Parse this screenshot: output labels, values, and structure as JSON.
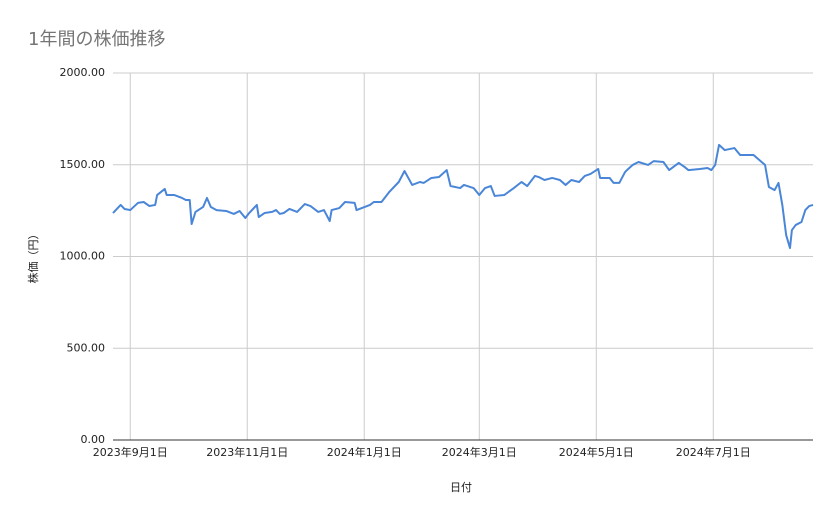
{
  "chart_data": {
    "type": "line",
    "title": "1年間の株価推移",
    "x_label": "日付",
    "y_label": "株価（円）",
    "color": "#4a86d8",
    "grid": true,
    "xlim": [
      "2023-08-23",
      "2024-08-22"
    ],
    "xticks": [
      {
        "value": "2023-09-01",
        "label": "2023年9月1日"
      },
      {
        "value": "2023-11-01",
        "label": "2023年11月1日"
      },
      {
        "value": "2024-01-01",
        "label": "2024年1月1日"
      },
      {
        "value": "2024-03-01",
        "label": "2024年3月1日"
      },
      {
        "value": "2024-05-01",
        "label": "2024年5月1日"
      },
      {
        "value": "2024-07-01",
        "label": "2024年7月1日"
      }
    ],
    "ylim": [
      0,
      2000
    ],
    "yticks": [
      {
        "value": 0,
        "label": "0.00"
      },
      {
        "value": 500,
        "label": "500.00"
      },
      {
        "value": 1000,
        "label": "1000.00"
      },
      {
        "value": 1500,
        "label": "1500.00"
      },
      {
        "value": 2000,
        "label": "2000.00"
      }
    ],
    "x": [
      "2023-08-23",
      "2023-08-25",
      "2023-08-27",
      "2023-08-29",
      "2023-09-01",
      "2023-09-05",
      "2023-09-08",
      "2023-09-11",
      "2023-09-14",
      "2023-09-15",
      "2023-09-19",
      "2023-09-20",
      "2023-09-24",
      "2023-09-28",
      "2023-09-30",
      "2023-10-02",
      "2023-10-03",
      "2023-10-05",
      "2023-10-09",
      "2023-10-11",
      "2023-10-13",
      "2023-10-16",
      "2023-10-21",
      "2023-10-25",
      "2023-10-28",
      "2023-10-31",
      "2023-11-02",
      "2023-11-06",
      "2023-11-07",
      "2023-11-10",
      "2023-11-14",
      "2023-11-16",
      "2023-11-18",
      "2023-11-20",
      "2023-11-23",
      "2023-11-27",
      "2023-12-01",
      "2023-12-04",
      "2023-12-08",
      "2023-12-11",
      "2023-12-14",
      "2023-12-15",
      "2023-12-19",
      "2023-12-22",
      "2023-12-27",
      "2023-12-28",
      "2024-01-04",
      "2024-01-06",
      "2024-01-10",
      "2024-01-14",
      "2024-01-19",
      "2024-01-22",
      "2024-01-26",
      "2024-01-30",
      "2024-02-01",
      "2024-02-05",
      "2024-02-09",
      "2024-02-13",
      "2024-02-15",
      "2024-02-20",
      "2024-02-22",
      "2024-02-27",
      "2024-03-01",
      "2024-03-04",
      "2024-03-07",
      "2024-03-09",
      "2024-03-14",
      "2024-03-19",
      "2024-03-23",
      "2024-03-26",
      "2024-03-30",
      "2024-04-01",
      "2024-04-04",
      "2024-04-08",
      "2024-04-12",
      "2024-04-15",
      "2024-04-18",
      "2024-04-22",
      "2024-04-25",
      "2024-04-28",
      "2024-05-02",
      "2024-05-03",
      "2024-05-08",
      "2024-05-10",
      "2024-05-13",
      "2024-05-16",
      "2024-05-17",
      "2024-05-20",
      "2024-05-23",
      "2024-05-28",
      "2024-05-31",
      "2024-06-05",
      "2024-06-08",
      "2024-06-13",
      "2024-06-16",
      "2024-06-18",
      "2024-06-24",
      "2024-06-28",
      "2024-06-30",
      "2024-07-02",
      "2024-07-04",
      "2024-07-07",
      "2024-07-12",
      "2024-07-15",
      "2024-07-22",
      "2024-07-25",
      "2024-07-28",
      "2024-07-30",
      "2024-08-02",
      "2024-08-04",
      "2024-08-06",
      "2024-08-08",
      "2024-08-10",
      "2024-08-11",
      "2024-08-13",
      "2024-08-16",
      "2024-08-18",
      "2024-08-20",
      "2024-08-22"
    ],
    "values": [
      1237,
      1259,
      1281,
      1259,
      1253,
      1292,
      1297,
      1275,
      1281,
      1335,
      1368,
      1335,
      1335,
      1319,
      1308,
      1308,
      1177,
      1243,
      1270,
      1319,
      1270,
      1253,
      1248,
      1232,
      1248,
      1210,
      1237,
      1281,
      1215,
      1237,
      1243,
      1253,
      1232,
      1237,
      1259,
      1243,
      1286,
      1275,
      1243,
      1253,
      1193,
      1253,
      1264,
      1297,
      1292,
      1253,
      1281,
      1297,
      1297,
      1351,
      1406,
      1466,
      1390,
      1406,
      1401,
      1428,
      1433,
      1471,
      1384,
      1373,
      1390,
      1373,
      1335,
      1373,
      1384,
      1330,
      1335,
      1373,
      1406,
      1384,
      1439,
      1433,
      1417,
      1428,
      1417,
      1390,
      1417,
      1406,
      1439,
      1450,
      1477,
      1428,
      1428,
      1401,
      1401,
      1460,
      1471,
      1499,
      1515,
      1499,
      1520,
      1515,
      1471,
      1510,
      1488,
      1471,
      1477,
      1482,
      1471,
      1499,
      1608,
      1580,
      1591,
      1553,
      1553,
      1526,
      1499,
      1379,
      1362,
      1401,
      1281,
      1117,
      1046,
      1144,
      1172,
      1188,
      1253,
      1275,
      1281
    ]
  }
}
